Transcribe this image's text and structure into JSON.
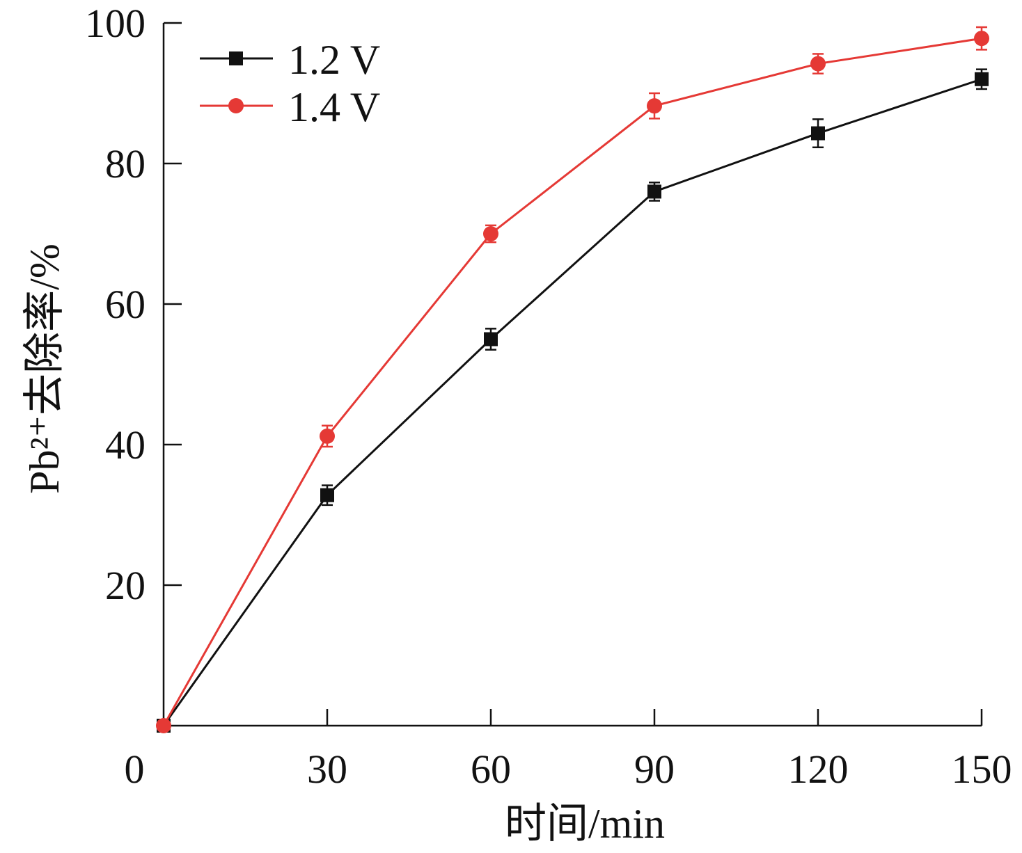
{
  "chart_data": {
    "type": "line",
    "title": "",
    "xlabel": "时间/min",
    "ylabel": "Pb²⁺去除率/%",
    "x": [
      0,
      30,
      60,
      90,
      120,
      150
    ],
    "xticks": [
      "0",
      "30",
      "60",
      "90",
      "120",
      "150"
    ],
    "yticks": [
      "20",
      "40",
      "60",
      "80",
      "100"
    ],
    "ylim": [
      0,
      100
    ],
    "xlim": [
      0,
      150
    ],
    "grid": false,
    "legend_position": "top-left",
    "series": [
      {
        "name": "1.2 V",
        "color": "#111111",
        "marker": "square",
        "values": [
          0,
          32.8,
          55.0,
          76.0,
          84.3,
          92.0
        ],
        "error": [
          0,
          1.4,
          1.5,
          1.3,
          2.0,
          1.4
        ]
      },
      {
        "name": "1.4 V",
        "color": "#e53935",
        "marker": "circle",
        "values": [
          0,
          41.2,
          70.0,
          88.2,
          94.2,
          97.8
        ],
        "error": [
          0,
          1.5,
          1.2,
          1.8,
          1.4,
          1.6
        ]
      }
    ]
  }
}
